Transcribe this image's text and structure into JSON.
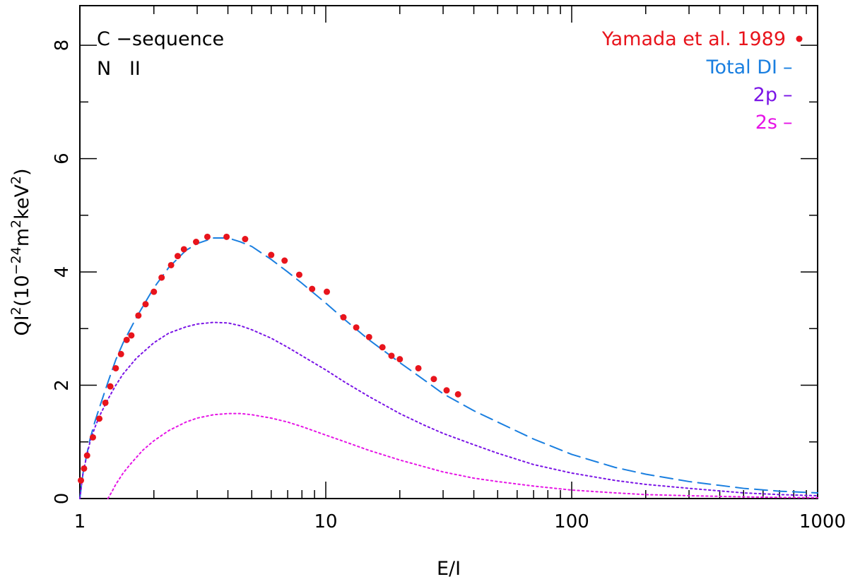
{
  "chart_data": {
    "type": "line",
    "x_scale": "log",
    "xlim": [
      1,
      1000
    ],
    "ylim": [
      0,
      8.7
    ],
    "xlabel": "E/I",
    "ylabel": {
      "base": "QI",
      "sup1": "2",
      "mid": "(10",
      "sup2": "−24",
      "mid2": "m",
      "sup3": "2",
      "mid3": "keV",
      "sup4": "2",
      "end": ")"
    },
    "x_ticks": [
      {
        "value": 1,
        "label": "1"
      },
      {
        "value": 10,
        "label": "10"
      },
      {
        "value": 100,
        "label": "100"
      },
      {
        "value": 1000,
        "label": "1000"
      }
    ],
    "y_ticks": [
      {
        "value": 0,
        "label": "0"
      },
      {
        "value": 2,
        "label": "2"
      },
      {
        "value": 4,
        "label": "4"
      },
      {
        "value": 6,
        "label": "6"
      },
      {
        "value": 8,
        "label": "8"
      }
    ],
    "annotations": {
      "sequence": "C −sequence",
      "ion": "N   II"
    },
    "legend": [
      {
        "label": "Yamada et al. 1989",
        "marker": "dot",
        "color": "#e8141c"
      },
      {
        "label": "Total DI",
        "marker": "–",
        "color": "#1a7fe0"
      },
      {
        "label": "2p",
        "marker": "–",
        "color": "#7a14e6"
      },
      {
        "label": "2s",
        "marker": "–",
        "color": "#e614e6"
      }
    ],
    "series": [
      {
        "name": "Total DI",
        "style": "dashed",
        "color": "#1a7fe0",
        "x": [
          1.0,
          1.03,
          1.07,
          1.1,
          1.15,
          1.2,
          1.3,
          1.4,
          1.5,
          1.7,
          2.0,
          2.3,
          2.7,
          3.0,
          3.5,
          4.0,
          4.5,
          5.0,
          6.0,
          7.0,
          8.0,
          10.0,
          12.0,
          15.0,
          20.0,
          25.0,
          30.0,
          40.0,
          50.0,
          70.0,
          100.0,
          150.0,
          200.0,
          300.0,
          500.0,
          700.0,
          1000.0
        ],
        "y": [
          0.0,
          0.45,
          0.8,
          1.05,
          1.35,
          1.6,
          2.05,
          2.45,
          2.75,
          3.2,
          3.72,
          4.08,
          4.38,
          4.5,
          4.6,
          4.6,
          4.53,
          4.45,
          4.22,
          4.0,
          3.8,
          3.45,
          3.15,
          2.8,
          2.4,
          2.1,
          1.85,
          1.55,
          1.35,
          1.05,
          0.78,
          0.55,
          0.43,
          0.3,
          0.18,
          0.13,
          0.1
        ]
      },
      {
        "name": "2p",
        "style": "dotted",
        "color": "#7a14e6",
        "x": [
          1.0,
          1.03,
          1.07,
          1.1,
          1.15,
          1.2,
          1.3,
          1.4,
          1.5,
          1.7,
          2.0,
          2.3,
          2.7,
          3.0,
          3.5,
          4.0,
          4.5,
          5.0,
          6.0,
          7.0,
          8.0,
          10.0,
          12.0,
          15.0,
          20.0,
          25.0,
          30.0,
          40.0,
          50.0,
          70.0,
          100.0,
          150.0,
          200.0,
          300.0,
          500.0,
          700.0,
          1000.0
        ],
        "y": [
          0.0,
          0.45,
          0.78,
          1.0,
          1.25,
          1.45,
          1.75,
          2.0,
          2.2,
          2.48,
          2.75,
          2.92,
          3.03,
          3.08,
          3.11,
          3.1,
          3.05,
          2.98,
          2.83,
          2.67,
          2.52,
          2.27,
          2.05,
          1.8,
          1.5,
          1.3,
          1.15,
          0.95,
          0.8,
          0.6,
          0.45,
          0.32,
          0.25,
          0.18,
          0.1,
          0.07,
          0.05
        ]
      },
      {
        "name": "2s",
        "style": "dotted",
        "color": "#e614e6",
        "x": [
          1.3,
          1.35,
          1.4,
          1.5,
          1.6,
          1.8,
          2.0,
          2.3,
          2.7,
          3.0,
          3.5,
          4.0,
          4.5,
          5.0,
          6.0,
          7.0,
          8.0,
          10.0,
          12.0,
          15.0,
          20.0,
          30.0,
          40.0,
          50.0,
          70.0,
          100.0,
          150.0,
          200.0,
          300.0,
          500.0,
          700.0,
          1000.0
        ],
        "y": [
          0.0,
          0.12,
          0.25,
          0.45,
          0.6,
          0.85,
          1.02,
          1.2,
          1.35,
          1.42,
          1.48,
          1.5,
          1.5,
          1.48,
          1.42,
          1.35,
          1.27,
          1.12,
          1.0,
          0.85,
          0.68,
          0.47,
          0.36,
          0.3,
          0.22,
          0.15,
          0.1,
          0.07,
          0.05,
          0.03,
          0.02,
          0.015
        ]
      },
      {
        "name": "Yamada et al. 1989",
        "style": "points",
        "color": "#e8141c",
        "x": [
          1.01,
          1.04,
          1.07,
          1.13,
          1.2,
          1.27,
          1.33,
          1.4,
          1.47,
          1.55,
          1.62,
          1.73,
          1.85,
          2.0,
          2.15,
          2.35,
          2.5,
          2.65,
          2.97,
          3.3,
          3.95,
          4.7,
          6.0,
          6.8,
          7.8,
          8.8,
          10.1,
          11.8,
          13.3,
          15.0,
          17.0,
          18.5,
          20.0,
          23.8,
          27.5,
          31.0,
          34.5
        ],
        "y": [
          0.32,
          0.53,
          0.76,
          1.08,
          1.41,
          1.69,
          1.98,
          2.3,
          2.55,
          2.8,
          2.88,
          3.23,
          3.43,
          3.65,
          3.9,
          4.12,
          4.28,
          4.4,
          4.53,
          4.62,
          4.62,
          4.58,
          4.3,
          4.2,
          3.95,
          3.7,
          3.65,
          3.2,
          3.02,
          2.85,
          2.67,
          2.52,
          2.46,
          2.3,
          2.11,
          1.91,
          1.84
        ]
      }
    ]
  }
}
